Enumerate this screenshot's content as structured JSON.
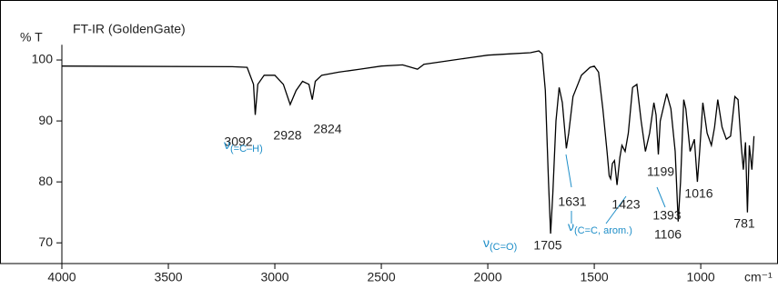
{
  "chart_data": {
    "type": "line",
    "title": "FT-IR (GoldenGate)",
    "y_label": "% T",
    "x_label": "cm⁻¹",
    "color": "#000000",
    "annotation_color": "#1e8ec8",
    "xlim": [
      4000,
      680
    ],
    "xticks": [
      4000,
      3500,
      3000,
      2500,
      2000,
      1500,
      1000
    ],
    "ylim": [
      66.6,
      104
    ],
    "yticks": [
      70,
      80,
      90,
      100
    ],
    "x": [
      4000,
      3200,
      3130,
      3100,
      3092,
      3080,
      3050,
      3000,
      2960,
      2928,
      2900,
      2870,
      2840,
      2824,
      2810,
      2780,
      2700,
      2600,
      2500,
      2400,
      2330,
      2300,
      2100,
      2000,
      1900,
      1800,
      1760,
      1745,
      1730,
      1715,
      1705,
      1695,
      1680,
      1665,
      1650,
      1631,
      1620,
      1600,
      1560,
      1520,
      1500,
      1480,
      1460,
      1440,
      1430,
      1423,
      1415,
      1405,
      1393,
      1380,
      1370,
      1355,
      1340,
      1320,
      1300,
      1280,
      1260,
      1240,
      1220,
      1210,
      1199,
      1190,
      1170,
      1160,
      1140,
      1120,
      1106,
      1095,
      1080,
      1070,
      1050,
      1030,
      1016,
      1005,
      990,
      970,
      950,
      935,
      920,
      900,
      880,
      860,
      840,
      825,
      810,
      800,
      790,
      781,
      772,
      760,
      750
    ],
    "y": [
      99,
      98.9,
      98.8,
      96,
      91,
      96,
      97.5,
      97.5,
      96,
      92.7,
      95,
      96.5,
      96,
      93.5,
      96.5,
      97.5,
      98,
      98.5,
      99,
      99.2,
      98.5,
      99.3,
      100.3,
      100.8,
      101,
      101.2,
      101.5,
      101,
      95,
      80,
      71.5,
      78,
      90,
      95.5,
      93,
      85.5,
      88,
      94,
      97.5,
      98.8,
      99,
      98,
      92,
      85,
      81,
      80.5,
      83,
      83.5,
      79.5,
      84,
      86,
      85,
      88,
      95.5,
      96,
      90,
      85,
      88,
      93,
      91,
      84.5,
      90,
      93,
      94.5,
      92,
      85,
      73.5,
      80,
      93.5,
      92,
      85,
      87,
      80,
      85,
      93,
      88,
      86,
      89,
      93.5,
      89,
      87,
      87.5,
      94,
      93.5,
      86,
      82,
      86.5,
      75,
      86,
      82,
      87.5
    ],
    "peak_labels": [
      "3092",
      "2928",
      "2824",
      "1631",
      "1423",
      "1393",
      "1199",
      "1705",
      "1106",
      "1016",
      "781"
    ],
    "vibration_labels": [
      {
        "symbol": "ν",
        "subscript": "(=C–H)"
      },
      {
        "symbol": "ν",
        "subscript": "(C=O)"
      },
      {
        "symbol": "ν",
        "subscript": "(C=C, arom.)"
      }
    ]
  }
}
